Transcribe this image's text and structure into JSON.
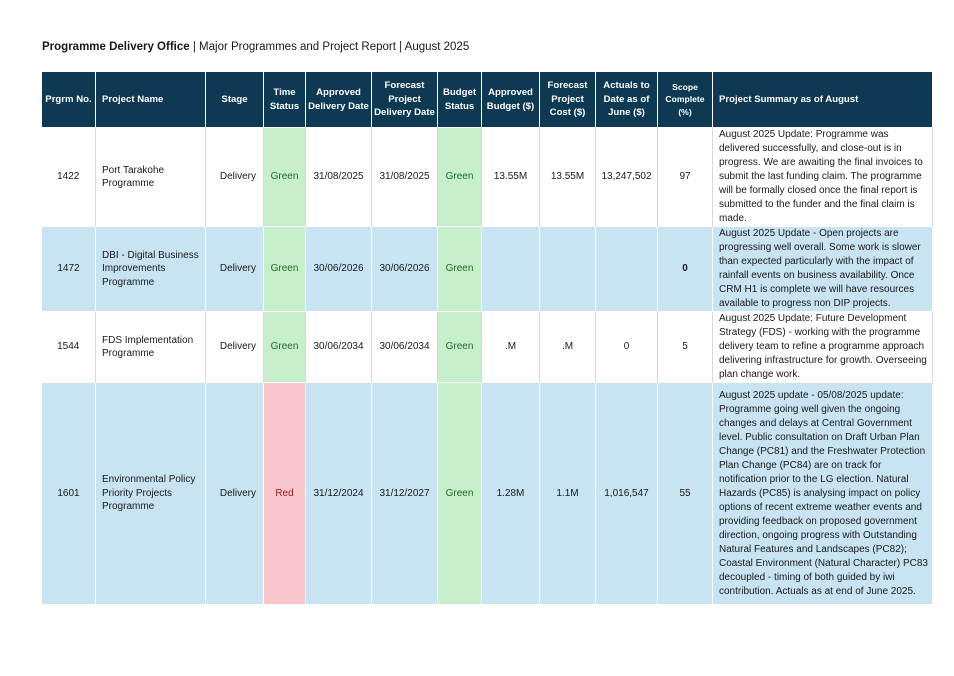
{
  "header": {
    "org": "Programme Delivery Office",
    "separator": " | ",
    "subtitle": "Major Programmes and Project Report | August 2025"
  },
  "columns": [
    "Prgrm No.",
    "Project Name",
    "Stage",
    "Time Status",
    "Approved Delivery Date",
    "Forecast Project Delivery Date",
    "Budget Status",
    "Approved Budget ($)",
    "Forecast Project Cost ($)",
    "Actuals to Date as of June ($)",
    "Scope Complete (%)",
    "Project Summary as of August"
  ],
  "rows": [
    {
      "no": "1422",
      "name": "Port Tarakohe Programme",
      "stage": "Delivery",
      "time_status": "Green",
      "approved_date": "31/08/2025",
      "forecast_date": "31/08/2025",
      "budget_status": "Green",
      "approved_budget": "13.55M",
      "forecast_cost": "13.55M",
      "actuals": "13,247,502",
      "scope": "97",
      "summary": "August 2025 Update: Programme was delivered successfully, and close-out is in progress. We are awaiting the final invoices to submit the last funding claim. The programme will be formally closed once the final report is submitted to the funder and the final claim is made."
    },
    {
      "no": "1472",
      "name": "DBI - Digital Business Improvements Programme",
      "stage": "Delivery",
      "time_status": "Green",
      "approved_date": "30/06/2026",
      "forecast_date": "30/06/2026",
      "budget_status": "Green",
      "approved_budget": "",
      "forecast_cost": "",
      "actuals": "",
      "scope": "0",
      "summary": "August 2025 Update - Open projects are progressing well overall. Some work is slower than expected particularly with the impact of rainfall events on business availability. Once CRM H1 is complete we will have resources available to progress non DIP projects."
    },
    {
      "no": "1544",
      "name": "FDS Implementation Programme",
      "stage": "Delivery",
      "time_status": "Green",
      "approved_date": "30/06/2034",
      "forecast_date": "30/06/2034",
      "budget_status": "Green",
      "approved_budget": ".M",
      "forecast_cost": ".M",
      "actuals": "0",
      "scope": "5",
      "summary": "August 2025 Update: Future Development Strategy (FDS) - working with the programme delivery team to refine a programme approach delivering infrastructure for growth. Overseeing plan change work."
    },
    {
      "no": "1601",
      "name": "Environmental Policy Priority Projects Programme",
      "stage": "Delivery",
      "time_status": "Red",
      "approved_date": "31/12/2024",
      "forecast_date": "31/12/2027",
      "budget_status": "Green",
      "approved_budget": "1.28M",
      "forecast_cost": "1.1M",
      "actuals": "1,016,547",
      "scope": "55",
      "summary": "August 2025 update - 05/08/2025 update: Programme going well given the ongoing changes and delays at Central Government level. Public consultation on Draft Urban Plan Change (PC81) and the Freshwater Protection Plan Change (PC84) are on track for notification prior to the LG election. Natural Hazards (PC85) is analysing impact on policy options of recent extreme weather events and providing feedback on proposed government direction, ongoing progress with Outstanding Natural Features and Landscapes (PC82); Coastal Environment (Natural Character) PC83 decoupled - timing of both guided by iwi contribution. Actuals as at end of June 2025."
    }
  ],
  "colors": {
    "header_bg": "#0d3a52",
    "row_blue": "#c8e3f2",
    "status_green": "#c7efcc",
    "status_red": "#f9c6cb"
  }
}
